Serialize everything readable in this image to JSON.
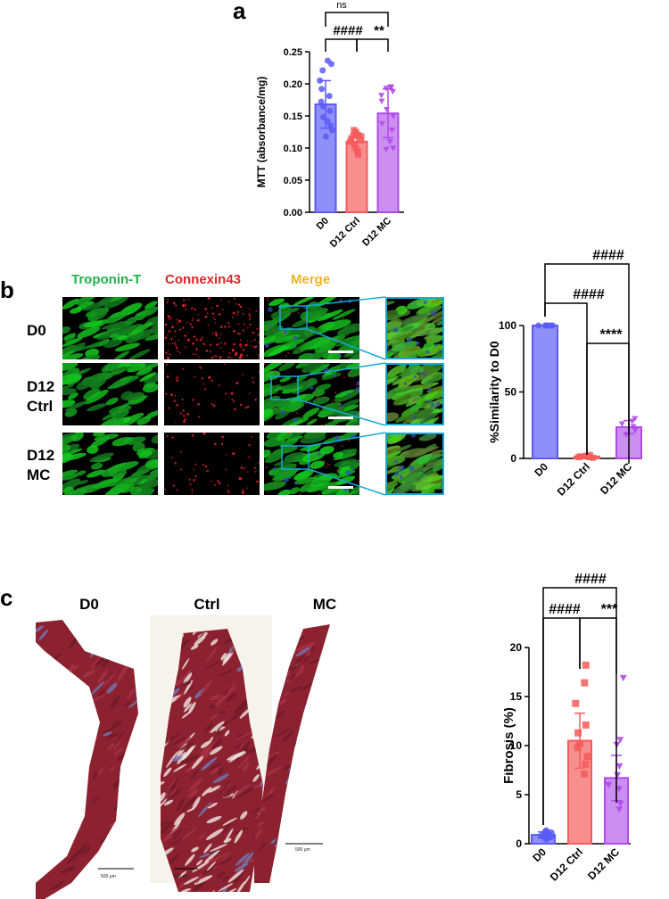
{
  "panels": {
    "a": "a",
    "b": "b",
    "c": "c"
  },
  "stains": {
    "troponin": "Troponin-T",
    "connexin": "Connexin43",
    "merge": "Merge"
  },
  "rows_b": {
    "d0": "D0",
    "ctrl": "D12\nCtrl",
    "mc": "D12\nMC"
  },
  "sections_c": {
    "d0": "D0",
    "ctrl": "Ctrl",
    "mc": "MC"
  },
  "scale_bar_c": "500 μm",
  "colors": {
    "d0": "#5b5bf5",
    "ctrl": "#f55b5b",
    "mc": "#b04ae8",
    "troponin": "#1fb24a",
    "connexin": "#e0262b",
    "merge": "#f0b323",
    "zoom_box": "#17a9d8"
  },
  "chart_data": [
    {
      "id": "a",
      "type": "bar",
      "categories": [
        "D0",
        "D12 Ctrl",
        "D12 MC"
      ],
      "values": [
        0.168,
        0.11,
        0.154
      ],
      "errors": [
        0.037,
        0.013,
        0.038
      ],
      "points": [
        [
          0.236,
          0.231,
          0.221,
          0.205,
          0.192,
          0.181,
          0.172,
          0.165,
          0.158,
          0.148,
          0.142,
          0.135,
          0.128,
          0.118
        ],
        [
          0.128,
          0.125,
          0.122,
          0.12,
          0.119,
          0.118,
          0.115,
          0.112,
          0.11,
          0.105,
          0.1,
          0.095,
          0.09
        ],
        [
          0.195,
          0.195,
          0.193,
          0.188,
          0.182,
          0.173,
          0.16,
          0.15,
          0.138,
          0.128,
          0.11,
          0.1,
          0.098
        ]
      ],
      "ylabel": "MTT (absorbance/mg)",
      "ylim": [
        0,
        0.25
      ],
      "yticks": [
        "0.00",
        "0.05",
        "0.10",
        "0.15",
        "0.20",
        "0.25"
      ],
      "significance": [
        {
          "from": 0,
          "to": 2,
          "label": "ns"
        },
        {
          "from": 0,
          "to": 1,
          "label": "####"
        },
        {
          "from": 1,
          "to": 2,
          "label": "**"
        }
      ]
    },
    {
      "id": "b",
      "type": "bar",
      "categories": [
        "D0",
        "D12 Ctrl",
        "D12 MC"
      ],
      "values": [
        100,
        1.5,
        23.5
      ],
      "errors": [
        0,
        1,
        5
      ],
      "points": [
        [
          100,
          100,
          100,
          100,
          100,
          100,
          100
        ],
        [
          2.5,
          2,
          1.5,
          1,
          1,
          0.5
        ],
        [
          30,
          28,
          26,
          24,
          21,
          18
        ]
      ],
      "ylabel": "%Similarity to D0",
      "ylim": [
        0,
        100
      ],
      "yticks": [
        "0",
        "50",
        "100"
      ],
      "significance": [
        {
          "from": 0,
          "to": 2,
          "label": "####"
        },
        {
          "from": 0,
          "to": 1,
          "label": "####"
        },
        {
          "from": 1,
          "to": 2,
          "label": "****"
        }
      ]
    },
    {
      "id": "c",
      "type": "bar",
      "categories": [
        "D0",
        "D12 Ctrl",
        "D12 MC"
      ],
      "values": [
        0.9,
        10.5,
        6.7
      ],
      "errors": [
        0.3,
        2.8,
        2.3
      ],
      "points": [
        [
          1.3,
          1.2,
          1.1,
          1.0,
          0.9,
          0.8,
          0.7,
          0.6,
          0.5
        ],
        [
          18.2,
          16.4,
          14.3,
          12.1,
          11.3,
          10.2,
          9.8,
          8.9,
          8.1,
          7.1
        ],
        [
          16.9,
          10.6,
          10.1,
          7.9,
          7.0,
          6.0,
          5.6,
          4.1,
          3.5
        ]
      ],
      "ylabel": "Fibrosis (%)",
      "ylim": [
        0,
        20
      ],
      "yticks": [
        "0",
        "5",
        "10",
        "15",
        "20"
      ],
      "significance": [
        {
          "from": 0,
          "to": 2,
          "label": "####"
        },
        {
          "from": 0,
          "to": 1,
          "label": "####"
        },
        {
          "from": 1,
          "to": 2,
          "label": "***"
        }
      ]
    }
  ]
}
